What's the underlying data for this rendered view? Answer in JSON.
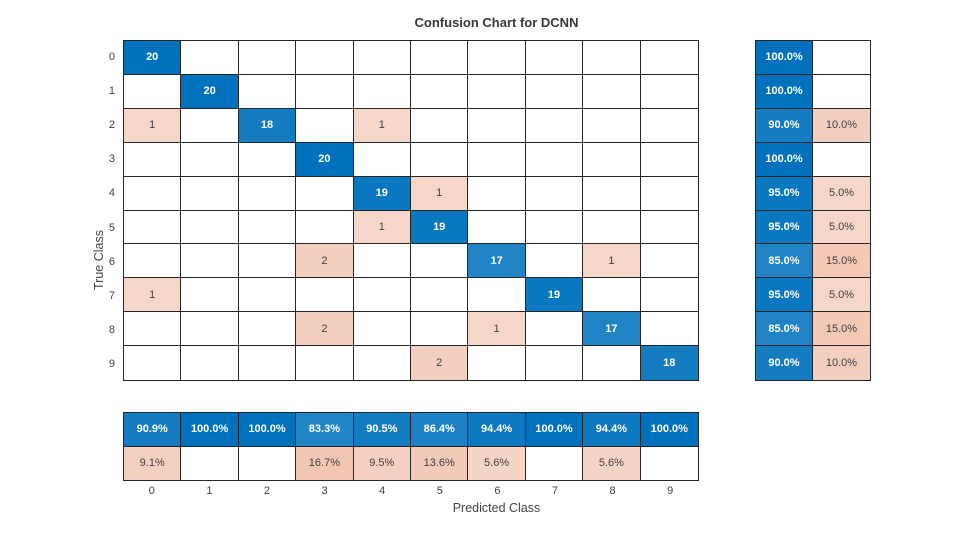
{
  "colors": {
    "diagonal_base": "#0072BD",
    "offdiagonal_base": "#D95319",
    "grid_line": "#262626",
    "cell_text_dark": "#3f3f3f",
    "cell_text_light": "#ffffff",
    "title_color": "#383838",
    "axis_text_color": "#464646"
  },
  "chart_data": {
    "type": "heatmap",
    "title": "Confusion Chart for DCNN",
    "xlabel": "Predicted Class",
    "ylabel": "True Class",
    "classes": [
      "0",
      "1",
      "2",
      "3",
      "4",
      "5",
      "6",
      "7",
      "8",
      "9"
    ],
    "matrix": [
      [
        20,
        0,
        0,
        0,
        0,
        0,
        0,
        0,
        0,
        0
      ],
      [
        0,
        20,
        0,
        0,
        0,
        0,
        0,
        0,
        0,
        0
      ],
      [
        1,
        0,
        18,
        0,
        1,
        0,
        0,
        0,
        0,
        0
      ],
      [
        0,
        0,
        0,
        20,
        0,
        0,
        0,
        0,
        0,
        0
      ],
      [
        0,
        0,
        0,
        0,
        19,
        1,
        0,
        0,
        0,
        0
      ],
      [
        0,
        0,
        0,
        0,
        1,
        19,
        0,
        0,
        0,
        0
      ],
      [
        0,
        0,
        0,
        2,
        0,
        0,
        17,
        0,
        1,
        0
      ],
      [
        1,
        0,
        0,
        0,
        0,
        0,
        0,
        19,
        0,
        0
      ],
      [
        0,
        0,
        0,
        2,
        0,
        0,
        1,
        0,
        17,
        0
      ],
      [
        0,
        0,
        0,
        0,
        0,
        2,
        0,
        0,
        0,
        18
      ]
    ],
    "row_summary": {
      "correct": [
        "100.0%",
        "100.0%",
        "90.0%",
        "100.0%",
        "95.0%",
        "95.0%",
        "85.0%",
        "95.0%",
        "85.0%",
        "90.0%"
      ],
      "incorrect": [
        "",
        "",
        "10.0%",
        "",
        "5.0%",
        "5.0%",
        "15.0%",
        "5.0%",
        "15.0%",
        "10.0%"
      ]
    },
    "column_summary": {
      "correct": [
        "90.9%",
        "100.0%",
        "100.0%",
        "83.3%",
        "90.5%",
        "86.4%",
        "94.4%",
        "100.0%",
        "94.4%",
        "100.0%"
      ],
      "incorrect": [
        "9.1%",
        "",
        "",
        "16.7%",
        "9.5%",
        "13.6%",
        "5.6%",
        "",
        "5.6%",
        ""
      ]
    },
    "legend_position": "none",
    "grid": true
  }
}
